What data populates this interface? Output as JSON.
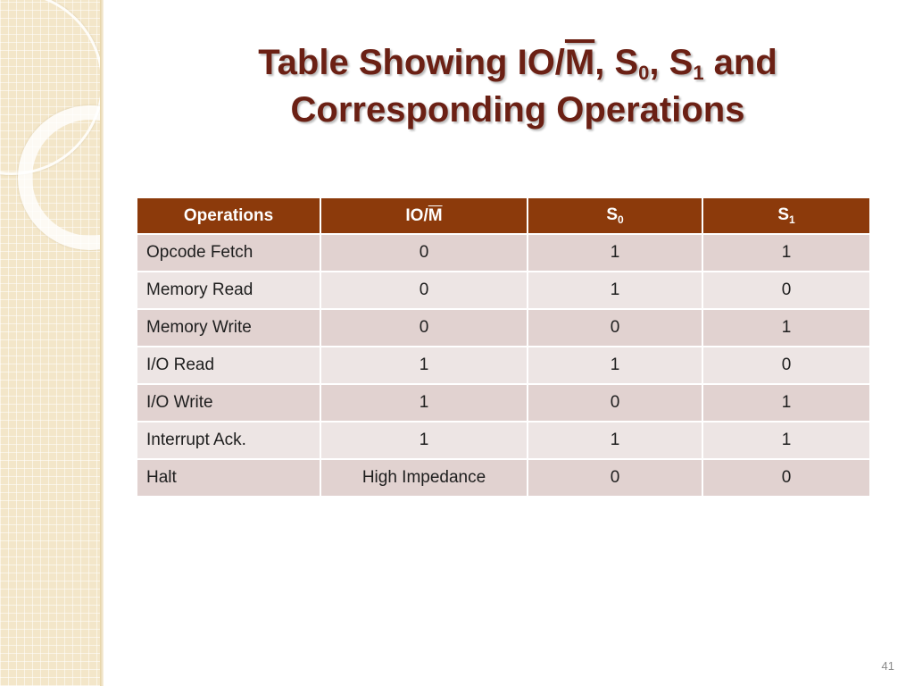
{
  "slide": {
    "title": {
      "line1_pre": "Table Showing ",
      "io": "IO/",
      "m_bar": "M",
      "s_sep1": ", S",
      "sub0": "0",
      "s_sep2": ", S",
      "sub1": "1",
      "line1_post": " and",
      "line2": "Corresponding Operations"
    },
    "page_number": "41"
  },
  "table": {
    "headers": {
      "operations": "Operations",
      "io_prefix": "IO/",
      "io_bar": "M",
      "s0_base": "S",
      "s0_sub": "0",
      "s1_base": "S",
      "s1_sub": "1"
    },
    "rows": [
      {
        "operation": "Opcode Fetch",
        "io_m": "0",
        "s0": "1",
        "s1": "1"
      },
      {
        "operation": "Memory Read",
        "io_m": "0",
        "s0": "1",
        "s1": "0"
      },
      {
        "operation": "Memory Write",
        "io_m": "0",
        "s0": "0",
        "s1": "1"
      },
      {
        "operation": "I/O Read",
        "io_m": "1",
        "s0": "1",
        "s1": "0"
      },
      {
        "operation": "I/O Write",
        "io_m": "1",
        "s0": "0",
        "s1": "1"
      },
      {
        "operation": "Interrupt Ack.",
        "io_m": "1",
        "s0": "1",
        "s1": "1"
      },
      {
        "operation": "Halt",
        "io_m": "High Impedance",
        "s0": "0",
        "s1": "0"
      }
    ]
  },
  "colors": {
    "header_bg": "#8c3a0b",
    "title_color": "#6b2014",
    "row_odd": "#e1d2d0",
    "row_even": "#ede5e4",
    "side_panel": "#f3e6c9"
  }
}
